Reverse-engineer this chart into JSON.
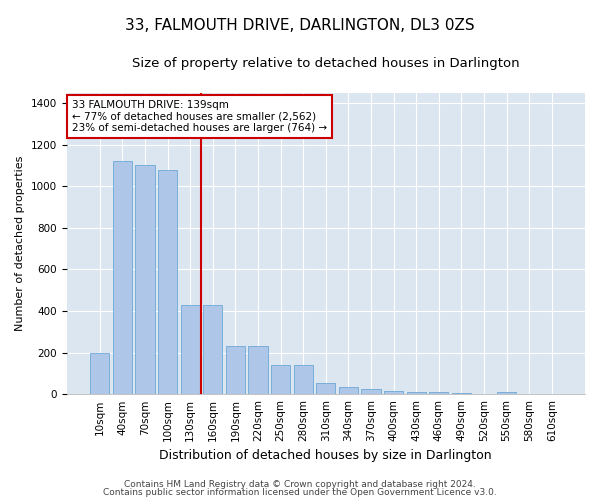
{
  "title": "33, FALMOUTH DRIVE, DARLINGTON, DL3 0ZS",
  "subtitle": "Size of property relative to detached houses in Darlington",
  "xlabel": "Distribution of detached houses by size in Darlington",
  "ylabel": "Number of detached properties",
  "categories": [
    "10sqm",
    "40sqm",
    "70sqm",
    "100sqm",
    "130sqm",
    "160sqm",
    "190sqm",
    "220sqm",
    "250sqm",
    "280sqm",
    "310sqm",
    "340sqm",
    "370sqm",
    "400sqm",
    "430sqm",
    "460sqm",
    "490sqm",
    "520sqm",
    "550sqm",
    "580sqm",
    "610sqm"
  ],
  "values": [
    200,
    1120,
    1100,
    1080,
    430,
    430,
    230,
    230,
    140,
    140,
    55,
    35,
    25,
    15,
    10,
    10,
    5,
    0,
    10,
    0,
    0
  ],
  "bar_color": "#aec6e8",
  "bar_edge_color": "#5a9fd4",
  "red_line_index": 4.5,
  "red_line_color": "#cc0000",
  "annotation_text": "33 FALMOUTH DRIVE: 139sqm\n← 77% of detached houses are smaller (2,562)\n23% of semi-detached houses are larger (764) →",
  "annotation_box_color": "#ffffff",
  "annotation_box_edge": "#cc0000",
  "ylim": [
    0,
    1450
  ],
  "yticks": [
    0,
    200,
    400,
    600,
    800,
    1000,
    1200,
    1400
  ],
  "background_color": "#dce6f0",
  "footer1": "Contains HM Land Registry data © Crown copyright and database right 2024.",
  "footer2": "Contains public sector information licensed under the Open Government Licence v3.0.",
  "title_fontsize": 11,
  "subtitle_fontsize": 9.5,
  "ylabel_fontsize": 8,
  "xlabel_fontsize": 9,
  "tick_fontsize": 7.5,
  "footer_fontsize": 6.5,
  "annotation_fontsize": 7.5
}
